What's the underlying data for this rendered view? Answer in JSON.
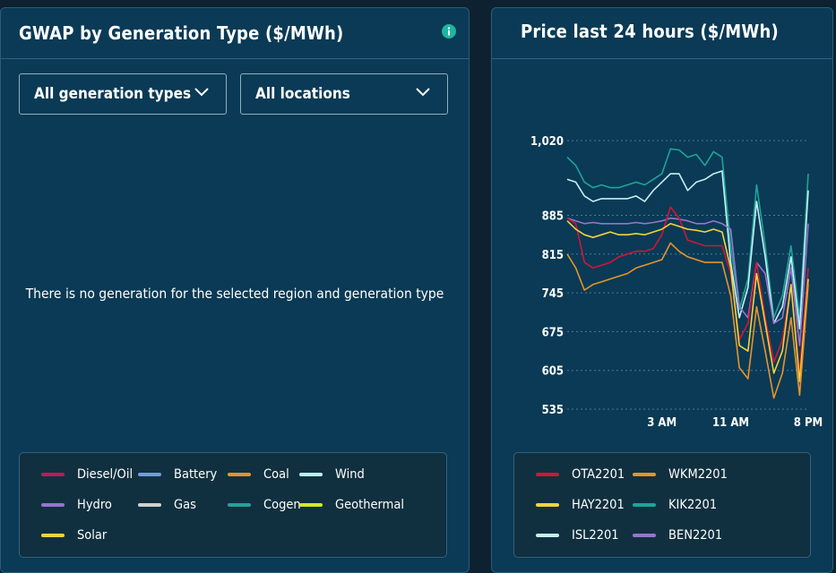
{
  "gwap_panel": {
    "title": "GWAP by Generation Type ($/MWh)",
    "info_icon": "info-icon",
    "generation_dropdown": {
      "value": "All generation types",
      "icon": "chevron-down-icon"
    },
    "location_dropdown": {
      "value": "All locations",
      "icon": "chevron-down-icon"
    },
    "empty_message": "There is no generation for the selected region and generation type",
    "legend": [
      {
        "label": "Diesel/Oil",
        "color": "#c2185b"
      },
      {
        "label": "Battery",
        "color": "#6f9be8"
      },
      {
        "label": "Coal",
        "color": "#e8932a"
      },
      {
        "label": "Wind",
        "color": "#b9f1f5"
      },
      {
        "label": "Hydro",
        "color": "#9575cd"
      },
      {
        "label": "Gas",
        "color": "#d0d0d0"
      },
      {
        "label": "Cogen",
        "color": "#1fa39a"
      },
      {
        "label": "Geothermal",
        "color": "#d4e82a"
      },
      {
        "label": "Solar",
        "color": "#f2d43a"
      }
    ]
  },
  "price_panel": {
    "title": "Price last 24 hours ($/MWh)",
    "legend": [
      {
        "label": "OTA2201",
        "color": "#d0163a"
      },
      {
        "label": "WKM2201",
        "color": "#e8932a"
      },
      {
        "label": "HAY2201",
        "color": "#f2d43a"
      },
      {
        "label": "KIK2201",
        "color": "#1fa39a"
      },
      {
        "label": "ISL2201",
        "color": "#c4f0f5"
      },
      {
        "label": "BEN2201",
        "color": "#9575cd"
      }
    ]
  },
  "chart_data": {
    "type": "line",
    "title": "Price last 24 hours ($/MWh)",
    "xlabel": "",
    "ylabel": "",
    "ylim": [
      535,
      1020
    ],
    "yticks": [
      535,
      605,
      675,
      745,
      815,
      885,
      1020
    ],
    "ytick_labels": [
      "535",
      "605",
      "675",
      "745",
      "815",
      "885",
      "1,020"
    ],
    "grid": true,
    "legend_position": "bottom",
    "x_ticks": [
      {
        "label": "3 AM",
        "x": 11
      },
      {
        "label": "11 AM",
        "x": 19
      },
      {
        "label": "8 PM",
        "x": 28
      }
    ],
    "x": [
      0,
      1,
      2,
      3,
      4,
      5,
      6,
      7,
      8,
      9,
      10,
      11,
      12,
      13,
      14,
      15,
      16,
      17,
      18,
      19,
      20,
      21,
      22,
      23,
      24,
      25,
      26,
      27,
      28
    ],
    "series": [
      {
        "name": "KIK2201",
        "color": "#1fa39a",
        "values": [
          990,
          975,
          945,
          935,
          940,
          935,
          935,
          940,
          945,
          940,
          950,
          960,
          1005,
          1003,
          990,
          995,
          975,
          1000,
          990,
          830,
          715,
          770,
          940,
          830,
          700,
          740,
          830,
          700,
          960
        ]
      },
      {
        "name": "ISL2201",
        "color": "#c4f0f5",
        "values": [
          950,
          945,
          920,
          910,
          915,
          915,
          915,
          915,
          920,
          910,
          930,
          945,
          960,
          960,
          930,
          945,
          950,
          960,
          965,
          800,
          700,
          755,
          910,
          810,
          690,
          720,
          810,
          680,
          930
        ]
      },
      {
        "name": "BEN2201",
        "color": "#9575cd",
        "values": [
          880,
          875,
          870,
          872,
          870,
          870,
          870,
          870,
          872,
          870,
          872,
          875,
          880,
          878,
          875,
          870,
          870,
          875,
          870,
          860,
          720,
          700,
          800,
          780,
          690,
          700,
          790,
          650,
          870
        ]
      },
      {
        "name": "OTA2201",
        "color": "#d0163a",
        "values": [
          880,
          870,
          800,
          790,
          795,
          800,
          810,
          815,
          820,
          820,
          825,
          850,
          900,
          880,
          840,
          835,
          830,
          830,
          830,
          780,
          660,
          690,
          800,
          700,
          620,
          660,
          760,
          600,
          790
        ]
      },
      {
        "name": "HAY2201",
        "color": "#f2d43a",
        "values": [
          875,
          860,
          850,
          845,
          850,
          855,
          850,
          850,
          852,
          850,
          855,
          860,
          870,
          865,
          860,
          858,
          855,
          860,
          855,
          790,
          650,
          640,
          780,
          690,
          600,
          640,
          760,
          585,
          770
        ]
      },
      {
        "name": "WKM2201",
        "color": "#e8932a",
        "values": [
          815,
          790,
          750,
          760,
          765,
          770,
          775,
          780,
          790,
          795,
          800,
          805,
          835,
          820,
          810,
          805,
          800,
          800,
          800,
          740,
          610,
          590,
          720,
          640,
          555,
          600,
          700,
          560,
          760
        ]
      }
    ]
  }
}
